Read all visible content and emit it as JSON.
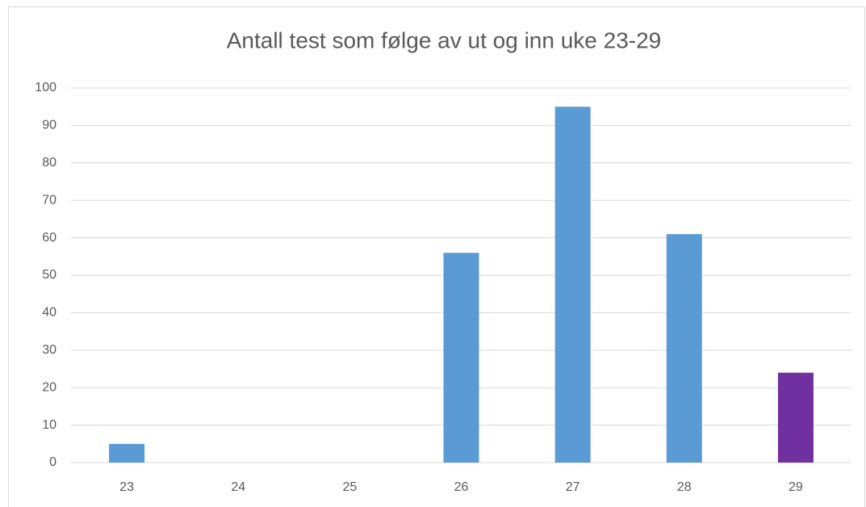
{
  "chart_data": {
    "type": "bar",
    "title": "Antall test som følge av ut og inn uke 23-29",
    "categories": [
      "23",
      "24",
      "25",
      "26",
      "27",
      "28",
      "29"
    ],
    "values": [
      5,
      0,
      0,
      56,
      95,
      61,
      24
    ],
    "colors": [
      "#5b9bd5",
      "#5b9bd5",
      "#5b9bd5",
      "#5b9bd5",
      "#5b9bd5",
      "#5b9bd5",
      "#7030a0"
    ],
    "ylim": [
      0,
      100
    ],
    "yticks": [
      0,
      10,
      20,
      30,
      40,
      50,
      60,
      70,
      80,
      90,
      100
    ],
    "grid": true
  }
}
